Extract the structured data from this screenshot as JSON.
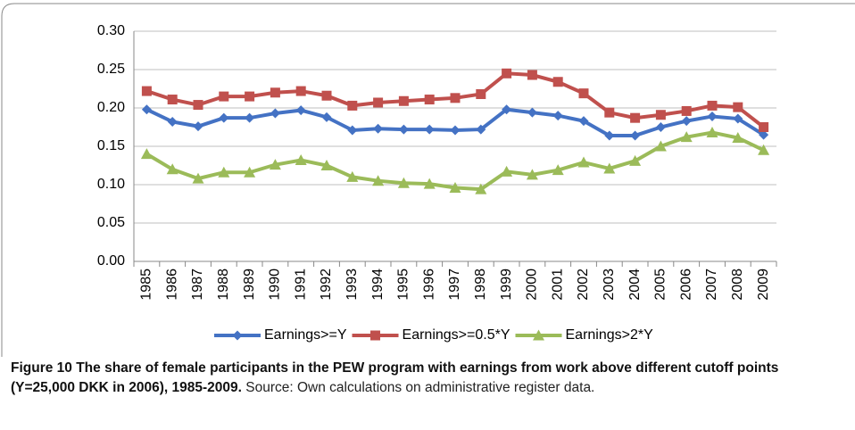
{
  "chart_data": {
    "type": "line",
    "categories": [
      "1985",
      "1986",
      "1987",
      "1988",
      "1989",
      "1990",
      "1991",
      "1992",
      "1993",
      "1994",
      "1995",
      "1996",
      "1997",
      "1998",
      "1999",
      "2000",
      "2001",
      "2002",
      "2003",
      "2004",
      "2005",
      "2006",
      "2007",
      "2008",
      "2009"
    ],
    "series": [
      {
        "name": "Earnings>=Y",
        "color": "#4472c4",
        "marker": "diamond",
        "values": [
          0.198,
          0.182,
          0.176,
          0.187,
          0.187,
          0.193,
          0.197,
          0.188,
          0.171,
          0.173,
          0.172,
          0.172,
          0.171,
          0.172,
          0.198,
          0.194,
          0.19,
          0.183,
          0.164,
          0.164,
          0.175,
          0.183,
          0.189,
          0.186,
          0.165
        ]
      },
      {
        "name": "Earnings>=0.5*Y",
        "color": "#c0504d",
        "marker": "square",
        "values": [
          0.222,
          0.211,
          0.204,
          0.215,
          0.215,
          0.22,
          0.222,
          0.216,
          0.203,
          0.207,
          0.209,
          0.211,
          0.213,
          0.218,
          0.245,
          0.243,
          0.234,
          0.219,
          0.194,
          0.187,
          0.191,
          0.196,
          0.203,
          0.201,
          0.175
        ]
      },
      {
        "name": "Earnings>2*Y",
        "color": "#9bbb59",
        "marker": "triangle",
        "values": [
          0.14,
          0.12,
          0.108,
          0.116,
          0.116,
          0.126,
          0.132,
          0.125,
          0.11,
          0.105,
          0.102,
          0.101,
          0.096,
          0.094,
          0.117,
          0.113,
          0.119,
          0.129,
          0.121,
          0.131,
          0.15,
          0.162,
          0.168,
          0.161,
          0.145
        ]
      }
    ],
    "ylim": [
      0,
      0.3
    ],
    "yticks": [
      {
        "value": 0,
        "label": "0.00"
      },
      {
        "value": 0.05,
        "label": "0.05"
      },
      {
        "value": 0.1,
        "label": "0.10"
      },
      {
        "value": 0.15,
        "label": "0.15"
      },
      {
        "value": 0.2,
        "label": "0.20"
      },
      {
        "value": 0.25,
        "label": "0.25"
      },
      {
        "value": 0.3,
        "label": "0.30"
      }
    ],
    "grid": true,
    "legend": "bottom"
  },
  "caption": {
    "label": "Figure 10 The share of female participants in the PEW program with earnings from work above different cutoff points (Y=25,000 DKK in 2006), 1985-2009.",
    "text": "Source: Own calculations on administrative register data."
  }
}
